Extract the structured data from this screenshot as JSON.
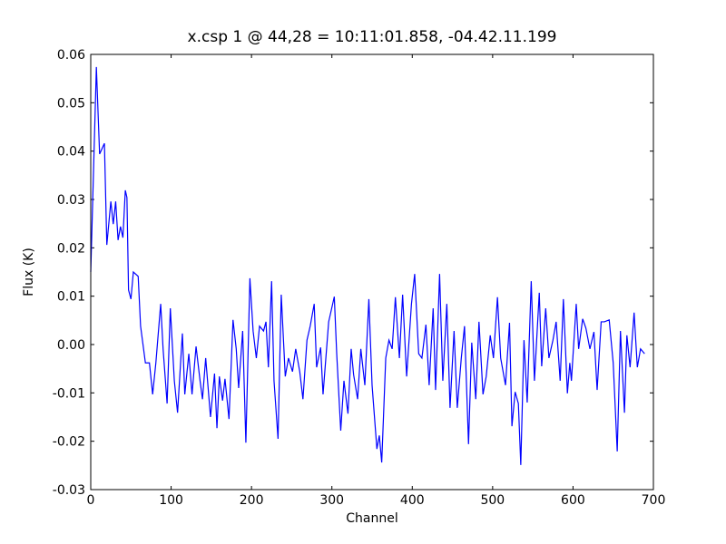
{
  "chart_data": {
    "type": "line",
    "title": "x.csp 1 @ 44,28 = 10:11:01.858, -04.42.11.199",
    "xlabel": "Channel",
    "ylabel": "Flux (K)",
    "xlim": [
      0,
      700
    ],
    "xticks": [
      0,
      100,
      200,
      300,
      400,
      500,
      600,
      700
    ],
    "ylim": [
      -0.03,
      0.06
    ],
    "yticks": [
      -0.03,
      -0.02,
      -0.01,
      {
        "value": 0,
        "label": "0.00"
      },
      0.01,
      0.02,
      0.03,
      0.04,
      0.05,
      0.06
    ],
    "grid": false,
    "series": [
      {
        "color": "#0000ff",
        "x": [
          0,
          7,
          11,
          17,
          20,
          25,
          28,
          31,
          34,
          37,
          40,
          43,
          45,
          47,
          50,
          53,
          59,
          62,
          68,
          73,
          77,
          81,
          87,
          90,
          95,
          99,
          104,
          108,
          114,
          117,
          122,
          126,
          131,
          136,
          139,
          143,
          149,
          154,
          157,
          160,
          164,
          167,
          172,
          177,
          181,
          184,
          189,
          193,
          198,
          202,
          206,
          210,
          215,
          218,
          221,
          225,
          228,
          233,
          237,
          242,
          246,
          251,
          255,
          260,
          264,
          269,
          273,
          278,
          281,
          286,
          289,
          296,
          303,
          306,
          311,
          315,
          320,
          324,
          327,
          332,
          336,
          341,
          346,
          350,
          356,
          359,
          362,
          367,
          371,
          375,
          379,
          384,
          388,
          393,
          399,
          403,
          408,
          412,
          417,
          421,
          426,
          429,
          434,
          438,
          443,
          447,
          452,
          456,
          461,
          465,
          470,
          474,
          479,
          483,
          488,
          492,
          497,
          501,
          506,
          510,
          516,
          521,
          524,
          528,
          532,
          535,
          539,
          543,
          548,
          552,
          558,
          561,
          566,
          570,
          575,
          579,
          584,
          588,
          593,
          596,
          598,
          604,
          607,
          612,
          616,
          621,
          626,
          630,
          635,
          639,
          645,
          650,
          655,
          659,
          664,
          667,
          671,
          676,
          680,
          684,
          689
        ],
        "values": [
          0.015,
          0.0574,
          0.0394,
          0.0416,
          0.0206,
          0.0296,
          0.0249,
          0.0296,
          0.0216,
          0.0244,
          0.0221,
          0.0319,
          0.0304,
          0.0113,
          0.0094,
          0.015,
          0.0141,
          0.0038,
          -0.0038,
          -0.0038,
          -0.0103,
          -0.0038,
          0.0084,
          -0.0009,
          -0.0122,
          0.0075,
          -0.0075,
          -0.0141,
          0.0023,
          -0.0103,
          -0.0019,
          -0.0103,
          -0.0004,
          -0.0075,
          -0.0113,
          -0.0028,
          -0.015,
          -0.006,
          -0.0173,
          -0.0066,
          -0.0116,
          -0.0071,
          -0.0154,
          0.0051,
          -0.0009,
          -0.009,
          0.0028,
          -0.0203,
          0.0137,
          0.0028,
          -0.0028,
          0.0038,
          0.0028,
          0.0047,
          -0.0047,
          0.0131,
          -0.0075,
          -0.0195,
          0.0103,
          -0.0066,
          -0.0028,
          -0.0056,
          -0.0009,
          -0.0056,
          -0.0113,
          0.0009,
          0.0038,
          0.0084,
          -0.0047,
          -0.0006,
          -0.0103,
          0.0047,
          0.0099,
          -0.0019,
          -0.0178,
          -0.0075,
          -0.0143,
          -0.0009,
          -0.0062,
          -0.0113,
          -0.0009,
          -0.0084,
          0.0094,
          -0.0084,
          -0.0216,
          -0.0188,
          -0.0244,
          -0.0028,
          0.0009,
          -0.0009,
          0.0098,
          -0.0028,
          0.0103,
          -0.0066,
          0.0084,
          0.0146,
          -0.0019,
          -0.0028,
          0.0041,
          -0.0084,
          0.0075,
          -0.0094,
          0.0146,
          -0.0075,
          0.0084,
          -0.0131,
          0.0028,
          -0.0131,
          -0.0028,
          0.0038,
          -0.0206,
          0.0004,
          -0.0113,
          0.0047,
          -0.0103,
          -0.0066,
          0.0019,
          -0.0028,
          0.0098,
          -0.0028,
          -0.0084,
          0.0045,
          -0.0169,
          -0.0098,
          -0.0122,
          -0.0249,
          0.0009,
          -0.012,
          0.0131,
          -0.0075,
          0.0107,
          -0.0045,
          0.0075,
          -0.0028,
          0.0009,
          0.0047,
          -0.0075,
          0.0094,
          -0.0101,
          -0.0038,
          -0.0075,
          0.0084,
          -0.0009,
          0.0053,
          0.0034,
          -0.0009,
          0.0026,
          -0.0094,
          0.0047,
          0.0047,
          0.0051,
          -0.0038,
          -0.0221,
          0.0028,
          -0.0141,
          0.0019,
          -0.0047,
          0.0066,
          -0.0047,
          -0.0009,
          -0.0019
        ]
      }
    ]
  }
}
